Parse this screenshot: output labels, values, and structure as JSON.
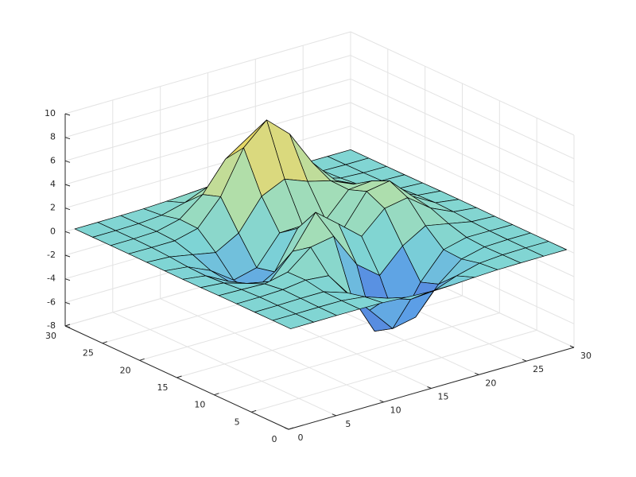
{
  "chart_data": {
    "type": "surface",
    "x": [
      1,
      3.4167,
      5.8333,
      8.25,
      10.6667,
      13.0833,
      15.5,
      17.9167,
      20.3333,
      22.75,
      25.1667,
      27.5833,
      30
    ],
    "y": [
      1,
      3.4167,
      5.8333,
      8.25,
      10.6667,
      13.0833,
      15.5,
      17.9167,
      20.3333,
      22.75,
      25.1667,
      27.5833,
      30
    ],
    "z": [
      [
        0,
        0,
        0.01,
        0,
        -0.03,
        -0.14,
        -0.24,
        -0.22,
        -0.11,
        -0.03,
        -0.01,
        0,
        0
      ],
      [
        0,
        0,
        0.01,
        0,
        -0.23,
        -0.91,
        -1.57,
        -1.41,
        -0.69,
        -0.18,
        -0.03,
        0,
        0
      ],
      [
        0,
        0.01,
        0.05,
        0.05,
        -0.59,
        -2.63,
        -4.75,
        -4.34,
        -2.1,
        -0.53,
        -0.06,
        0,
        0
      ],
      [
        0,
        0.01,
        0.08,
        0.33,
        0.15,
        -2.19,
        -5.68,
        -5.76,
        -2.64,
        -0.44,
        0.04,
        0.03,
        0
      ],
      [
        -0.01,
        -0.06,
        -0.13,
        0.3,
        1.86,
        2.22,
        -0.72,
        -2.22,
        -0.27,
        0.88,
        0.5,
        0.11,
        0.01
      ],
      [
        -0.03,
        -0.2,
        -0.8,
        -1.21,
        0.8,
        3.55,
        2,
        0.39,
        2.2,
        2.56,
        1.12,
        0.24,
        0.03
      ],
      [
        -0.04,
        -0.3,
        -1.33,
        -2.77,
        -1.65,
        1.48,
        0.98,
        0.37,
        2.94,
        3.27,
        1.41,
        0.3,
        0.03
      ],
      [
        -0.03,
        -0.25,
        -1.12,
        -2.49,
        -2,
        0.39,
        0.46,
        0.37,
        2.38,
        2.56,
        1.09,
        0.23,
        0.03
      ],
      [
        -0.01,
        -0.11,
        -0.48,
        -0.86,
        0.23,
        2.79,
        3.69,
        2.94,
        2.43,
        1.58,
        0.58,
        0.11,
        0.01
      ],
      [
        0,
        -0.02,
        -0.01,
        0.48,
        2.61,
        6.2,
        8,
        6.25,
        3.25,
        1.19,
        0.29,
        0.05,
        0
      ],
      [
        0,
        0.01,
        0.08,
        0.55,
        2.09,
        4.55,
        5.85,
        4.56,
        2.21,
        0.68,
        0.13,
        0.02,
        0
      ],
      [
        0,
        0,
        0.03,
        0.19,
        0.69,
        1.47,
        1.88,
        1.47,
        0.7,
        0.2,
        0.04,
        0,
        0
      ],
      [
        0,
        0,
        0.01,
        0.03,
        0.11,
        0.23,
        0.3,
        0.23,
        0.11,
        0.03,
        0.01,
        0,
        0
      ]
    ],
    "xlim": [
      0,
      30
    ],
    "ylim": [
      0,
      30
    ],
    "zlim": [
      -8,
      10
    ],
    "xticks": [
      0,
      5,
      10,
      15,
      20,
      25,
      30
    ],
    "yticks": [
      0,
      5,
      10,
      15,
      20,
      25,
      30
    ],
    "zticks": [
      -8,
      -6,
      -4,
      -2,
      0,
      2,
      4,
      6,
      8,
      10
    ],
    "grid": true,
    "colormap": [
      "#4f63d2",
      "#5c9ee6",
      "#7dd4d6",
      "#a9dfb2",
      "#dbd97c",
      "#f9d23c"
    ],
    "edge_color": "#000000"
  }
}
